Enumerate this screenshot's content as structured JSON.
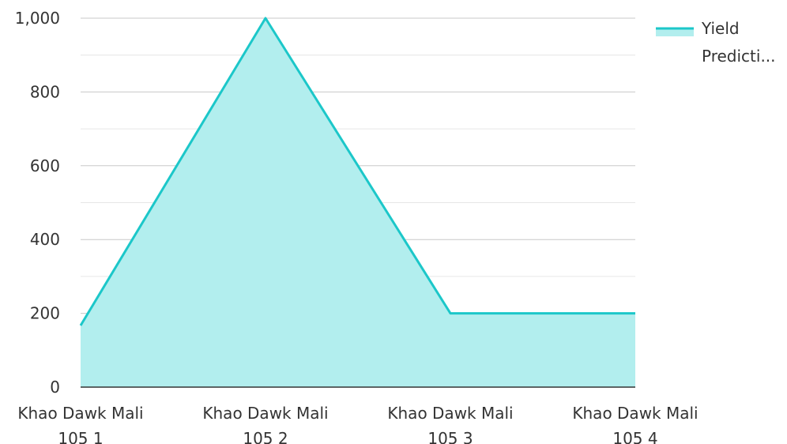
{
  "chart_data": {
    "type": "area",
    "categories": [
      [
        "Khao Dawk Mali",
        "105 1"
      ],
      [
        "Khao Dawk Mali",
        "105 2"
      ],
      [
        "Khao Dawk Mali",
        "105 3"
      ],
      [
        "Khao Dawk Mali",
        "105 4"
      ]
    ],
    "series": [
      {
        "name": "Yield Predicti...",
        "values": [
          167,
          1000,
          200,
          200
        ]
      }
    ],
    "legend": {
      "placement": "top-right",
      "lines": [
        "Yield",
        "Predicti..."
      ]
    },
    "yticks": [
      "0",
      "200",
      "400",
      "600",
      "800",
      "1,000"
    ],
    "ylim": [
      0,
      1000
    ],
    "minor_gridlines_step": 100,
    "grid": true,
    "colors": {
      "line": "#1cc7c9",
      "fill": "#b2eeee",
      "grid_major": "#c8c8c8",
      "grid_minor": "#e6e6e6",
      "axis": "#333333"
    }
  }
}
